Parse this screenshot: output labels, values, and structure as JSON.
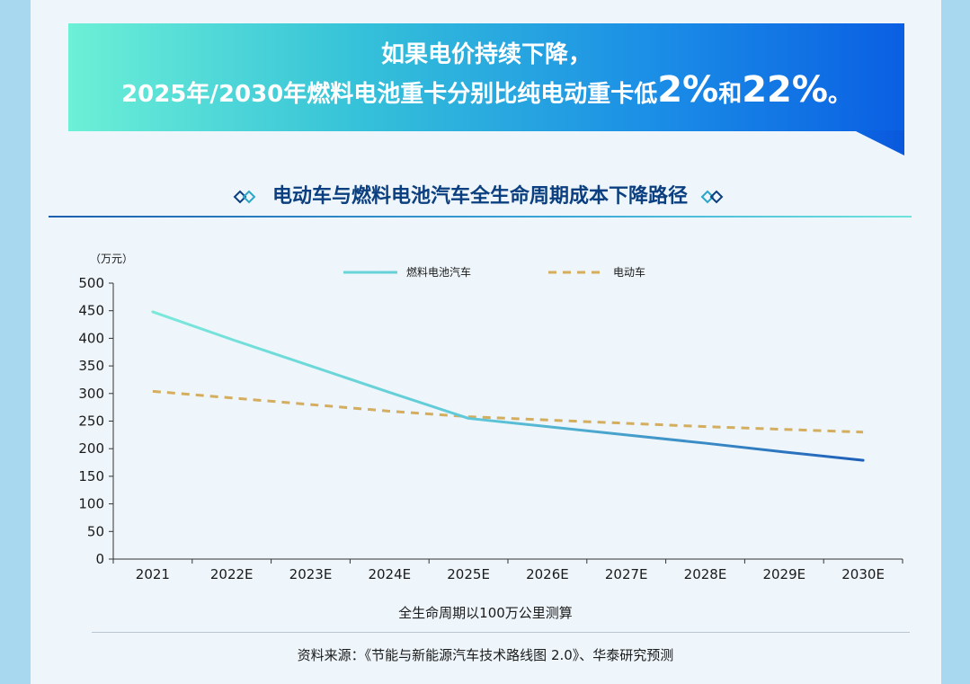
{
  "banner": {
    "line1": "如果电价持续下降，",
    "line2_prefix": "2025年/2030年燃料电池重卡分别比纯电动重卡低",
    "line2_value1": "2%",
    "line2_and": "和",
    "line2_value2": "22%",
    "line2_suffix": "。"
  },
  "chart_data": {
    "type": "line",
    "title": "电动车与燃料电池汽车全生命周期成本下降路径",
    "ylabel": "（万元）",
    "xlabel": "全生命周期以100万公里测算",
    "ylim": [
      0,
      500
    ],
    "yticks": [
      0,
      50,
      100,
      150,
      200,
      250,
      300,
      350,
      400,
      450,
      500
    ],
    "categories": [
      "2021",
      "2022E",
      "2023E",
      "2024E",
      "2025E",
      "2026E",
      "2027E",
      "2028E",
      "2029E",
      "2030E"
    ],
    "series": [
      {
        "name": "燃料电池汽车",
        "values": [
          448,
          398,
          350,
          302,
          255,
          240,
          225,
          210,
          194,
          179
        ],
        "style": "solid",
        "color_start": "#7be8da",
        "color_end": "#1f5fb8"
      },
      {
        "name": "电动车",
        "values": [
          304,
          292,
          280,
          268,
          258,
          252,
          246,
          240,
          235,
          230
        ],
        "style": "dashed",
        "color": "#d4ae5e"
      }
    ],
    "legend_position": "top-center",
    "grid": false
  },
  "source": "资料来源：《节能与新能源汽车技术路线图 2.0》、华泰研究预测"
}
